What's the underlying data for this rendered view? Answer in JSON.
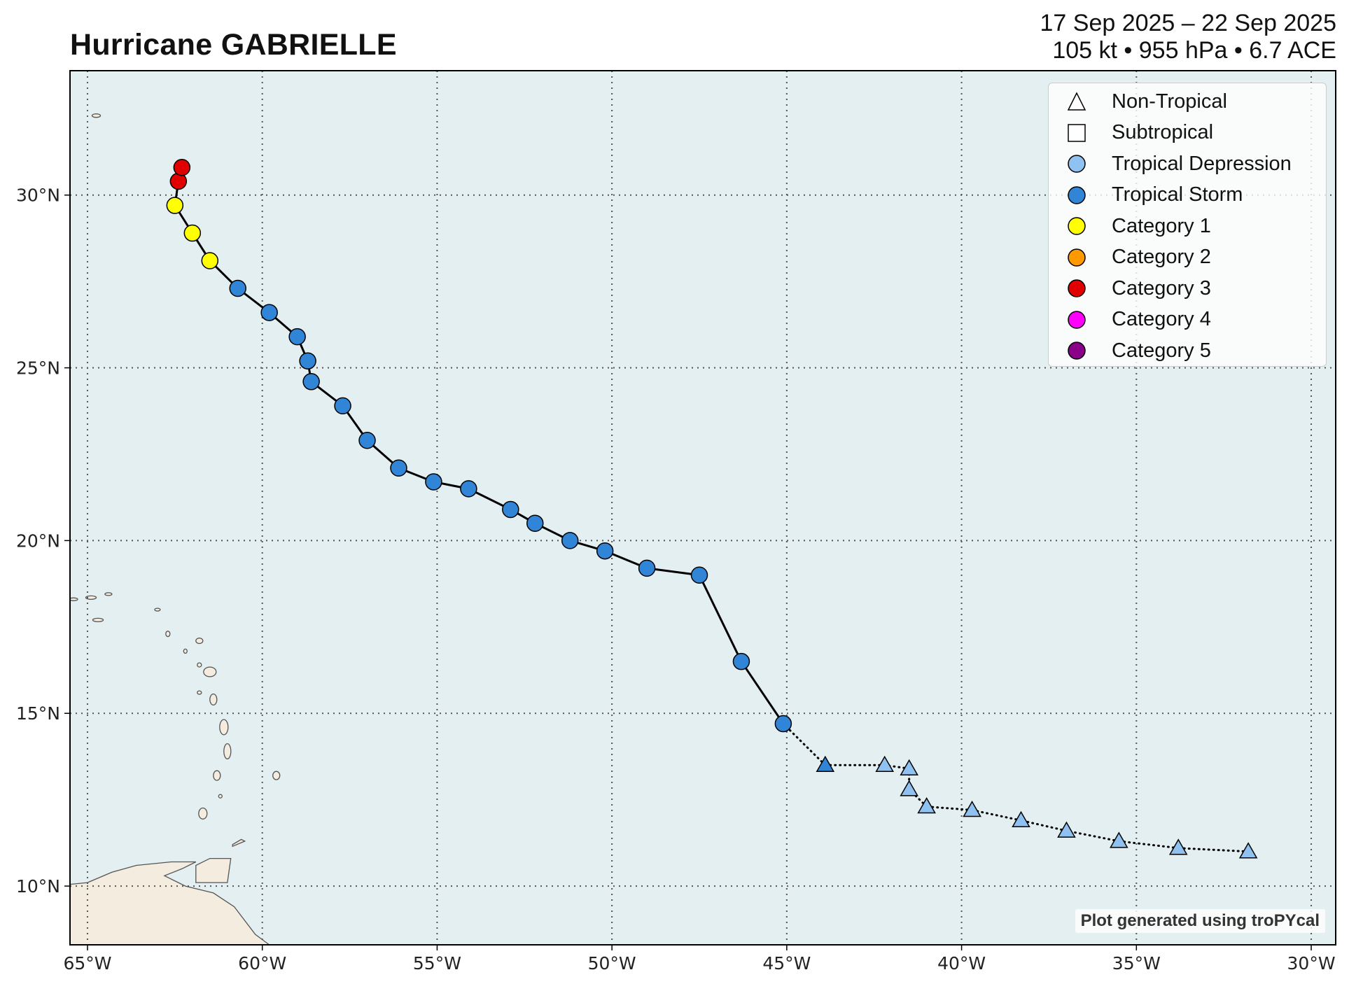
{
  "title": "Hurricane GABRIELLE",
  "subtitle": {
    "dates": "17 Sep 2025 – 22 Sep 2025",
    "stats": "105 kt • 955 hPa • 6.7 ACE"
  },
  "credit": "Plot generated using troPYcal",
  "map": {
    "lon_range": [
      -65.5,
      -29.3
    ],
    "lat_range": [
      8.3,
      33.6
    ],
    "x_ticks": [
      {
        "lon": -65,
        "label": "65°W"
      },
      {
        "lon": -60,
        "label": "60°W"
      },
      {
        "lon": -55,
        "label": "55°W"
      },
      {
        "lon": -50,
        "label": "50°W"
      },
      {
        "lon": -45,
        "label": "45°W"
      },
      {
        "lon": -40,
        "label": "40°W"
      },
      {
        "lon": -35,
        "label": "35°W"
      },
      {
        "lon": -30,
        "label": "30°W"
      }
    ],
    "y_ticks": [
      {
        "lat": 10,
        "label": "10°N"
      },
      {
        "lat": 15,
        "label": "15°N"
      },
      {
        "lat": 20,
        "label": "20°N"
      },
      {
        "lat": 25,
        "label": "25°N"
      },
      {
        "lat": 30,
        "label": "30°N"
      }
    ],
    "ocean_color": "#e3eff1",
    "land_color": "#f5ece0",
    "grid": true
  },
  "legend": [
    {
      "label": "Non-Tropical",
      "symbol": "triangle-outline",
      "color": "#ffffff"
    },
    {
      "label": "Subtropical",
      "symbol": "square-outline",
      "color": "#ffffff"
    },
    {
      "label": "Tropical Depression",
      "symbol": "circle",
      "color": "#8fc2f0"
    },
    {
      "label": "Tropical Storm",
      "symbol": "circle",
      "color": "#3185d6"
    },
    {
      "label": "Category 1",
      "symbol": "circle",
      "color": "#ffff00"
    },
    {
      "label": "Category 2",
      "symbol": "circle",
      "color": "#ff9900"
    },
    {
      "label": "Category 3",
      "symbol": "circle",
      "color": "#e00000"
    },
    {
      "label": "Category 4",
      "symbol": "circle",
      "color": "#ff00fc"
    },
    {
      "label": "Category 5",
      "symbol": "circle",
      "color": "#8b0088"
    }
  ],
  "chart_data": {
    "type": "scatter",
    "category_colors": {
      "TD": "#8fc2f0",
      "TS": "#3185d6",
      "C1": "#ffff00",
      "C2": "#ff9900",
      "C3": "#e00000",
      "C4": "#ff00fc",
      "C5": "#8b0088"
    },
    "track": [
      {
        "lon": -31.8,
        "lat": 11.0,
        "cat": "TD",
        "type": "non-tropical"
      },
      {
        "lon": -33.8,
        "lat": 11.1,
        "cat": "TD",
        "type": "non-tropical"
      },
      {
        "lon": -35.5,
        "lat": 11.3,
        "cat": "TD",
        "type": "non-tropical"
      },
      {
        "lon": -37.0,
        "lat": 11.6,
        "cat": "TD",
        "type": "non-tropical"
      },
      {
        "lon": -38.3,
        "lat": 11.9,
        "cat": "TD",
        "type": "non-tropical"
      },
      {
        "lon": -39.7,
        "lat": 12.2,
        "cat": "TD",
        "type": "non-tropical"
      },
      {
        "lon": -41.0,
        "lat": 12.3,
        "cat": "TD",
        "type": "non-tropical"
      },
      {
        "lon": -41.5,
        "lat": 12.8,
        "cat": "TD",
        "type": "non-tropical"
      },
      {
        "lon": -41.5,
        "lat": 13.4,
        "cat": "TD",
        "type": "non-tropical"
      },
      {
        "lon": -42.2,
        "lat": 13.5,
        "cat": "TD",
        "type": "non-tropical"
      },
      {
        "lon": -43.9,
        "lat": 13.5,
        "cat": "TS",
        "type": "non-tropical"
      },
      {
        "lon": -45.1,
        "lat": 14.7,
        "cat": "TS",
        "type": "tropical"
      },
      {
        "lon": -46.3,
        "lat": 16.5,
        "cat": "TS",
        "type": "tropical"
      },
      {
        "lon": -47.5,
        "lat": 19.0,
        "cat": "TS",
        "type": "tropical"
      },
      {
        "lon": -49.0,
        "lat": 19.2,
        "cat": "TS",
        "type": "tropical"
      },
      {
        "lon": -50.2,
        "lat": 19.7,
        "cat": "TS",
        "type": "tropical"
      },
      {
        "lon": -51.2,
        "lat": 20.0,
        "cat": "TS",
        "type": "tropical"
      },
      {
        "lon": -52.2,
        "lat": 20.5,
        "cat": "TS",
        "type": "tropical"
      },
      {
        "lon": -52.9,
        "lat": 20.9,
        "cat": "TS",
        "type": "tropical"
      },
      {
        "lon": -54.1,
        "lat": 21.5,
        "cat": "TS",
        "type": "tropical"
      },
      {
        "lon": -55.1,
        "lat": 21.7,
        "cat": "TS",
        "type": "tropical"
      },
      {
        "lon": -56.1,
        "lat": 22.1,
        "cat": "TS",
        "type": "tropical"
      },
      {
        "lon": -57.0,
        "lat": 22.9,
        "cat": "TS",
        "type": "tropical"
      },
      {
        "lon": -57.7,
        "lat": 23.9,
        "cat": "TS",
        "type": "tropical"
      },
      {
        "lon": -58.6,
        "lat": 24.6,
        "cat": "TS",
        "type": "tropical"
      },
      {
        "lon": -58.7,
        "lat": 25.2,
        "cat": "TS",
        "type": "tropical"
      },
      {
        "lon": -59.0,
        "lat": 25.9,
        "cat": "TS",
        "type": "tropical"
      },
      {
        "lon": -59.8,
        "lat": 26.6,
        "cat": "TS",
        "type": "tropical"
      },
      {
        "lon": -60.7,
        "lat": 27.3,
        "cat": "TS",
        "type": "tropical"
      },
      {
        "lon": -61.5,
        "lat": 28.1,
        "cat": "C1",
        "type": "tropical"
      },
      {
        "lon": -62.0,
        "lat": 28.9,
        "cat": "C1",
        "type": "tropical"
      },
      {
        "lon": -62.5,
        "lat": 29.7,
        "cat": "C1",
        "type": "tropical"
      },
      {
        "lon": -62.4,
        "lat": 30.4,
        "cat": "C3",
        "type": "tropical"
      },
      {
        "lon": -62.3,
        "lat": 30.8,
        "cat": "C3",
        "type": "tropical"
      }
    ]
  }
}
